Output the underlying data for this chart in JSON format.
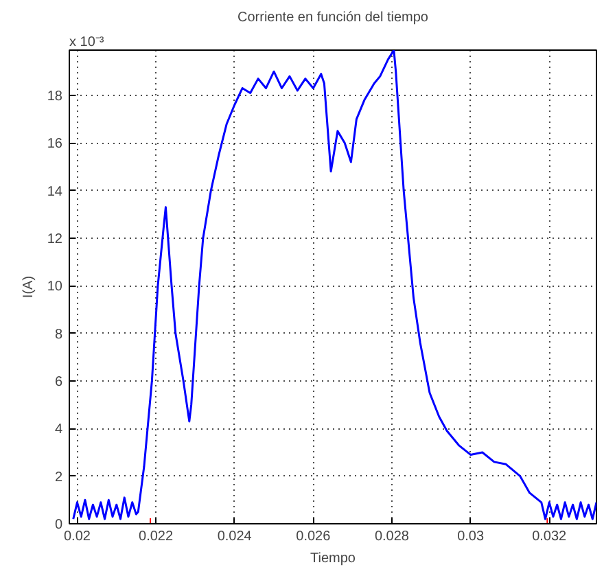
{
  "chart_data": {
    "type": "line",
    "title": "Corriente en función del tiempo",
    "xlabel": "Tiempo",
    "ylabel": "I(A)",
    "annotations": [
      "x 10⁻³"
    ],
    "xlim": [
      0.0198,
      0.0332
    ],
    "ylim": [
      0,
      19.9
    ],
    "xticks": [
      0.02,
      0.022,
      0.024,
      0.026,
      0.028,
      0.03,
      0.032
    ],
    "yticks": [
      0,
      2,
      4,
      6,
      8,
      10,
      12,
      14,
      16,
      18
    ],
    "grid": true,
    "line_style": "solid",
    "marker": "none",
    "series": [
      {
        "color": "#0000ff",
        "x": [
          0.0199,
          0.02,
          0.0201,
          0.0202,
          0.0203,
          0.0204,
          0.0205,
          0.0206,
          0.0207,
          0.0208,
          0.0209,
          0.021,
          0.0211,
          0.0212,
          0.0213,
          0.0214,
          0.0215,
          0.02155,
          0.0217,
          0.0219,
          0.02205,
          0.0222,
          0.02225,
          0.0223,
          0.0224,
          0.0225,
          0.0227,
          0.02285,
          0.0229,
          0.0231,
          0.0232,
          0.0234,
          0.0236,
          0.0238,
          0.024,
          0.0242,
          0.0244,
          0.0246,
          0.0248,
          0.025,
          0.0252,
          0.0254,
          0.0256,
          0.0258,
          0.026,
          0.0262,
          0.02628,
          0.02645,
          0.02662,
          0.0268,
          0.02696,
          0.0271,
          0.0273,
          0.02755,
          0.0277,
          0.0279,
          0.02805,
          0.0281,
          0.02814,
          0.0283,
          0.02855,
          0.02872,
          0.02896,
          0.0292,
          0.0294,
          0.0297,
          0.03,
          0.0303,
          0.0306,
          0.0309,
          0.03126,
          0.0315,
          0.0318,
          0.0319,
          0.032,
          0.0321,
          0.0322,
          0.0323,
          0.0324,
          0.0325,
          0.0326,
          0.0327,
          0.0328,
          0.0329,
          0.033,
          0.0331,
          0.0332
        ],
        "values": [
          0.2,
          0.9,
          0.3,
          1.0,
          0.2,
          0.8,
          0.3,
          0.9,
          0.2,
          1.0,
          0.3,
          0.8,
          0.2,
          1.1,
          0.3,
          0.9,
          0.4,
          0.5,
          2.4,
          6.0,
          10.0,
          12.5,
          13.3,
          12.2,
          10.0,
          8.0,
          6.0,
          4.3,
          5.0,
          10.0,
          12.0,
          14.0,
          15.5,
          16.8,
          17.6,
          18.3,
          18.1,
          18.7,
          18.3,
          19.0,
          18.3,
          18.8,
          18.2,
          18.7,
          18.3,
          18.9,
          18.5,
          14.8,
          16.5,
          16.0,
          15.2,
          17.0,
          17.8,
          18.5,
          18.8,
          19.5,
          19.9,
          19.0,
          18.0,
          14.0,
          9.5,
          7.6,
          5.5,
          4.5,
          3.9,
          3.3,
          2.9,
          3.0,
          2.6,
          2.5,
          2.0,
          1.3,
          0.9,
          0.2,
          0.9,
          0.3,
          0.8,
          0.2,
          0.9,
          0.3,
          0.8,
          0.2,
          0.9,
          0.3,
          0.8,
          0.2,
          0.9
        ]
      },
      {
        "type": "scatter",
        "color": "#ff0000",
        "marker": "cross",
        "x": [
          0.02186,
          0.03195
        ],
        "values": [
          0,
          0
        ]
      }
    ]
  }
}
